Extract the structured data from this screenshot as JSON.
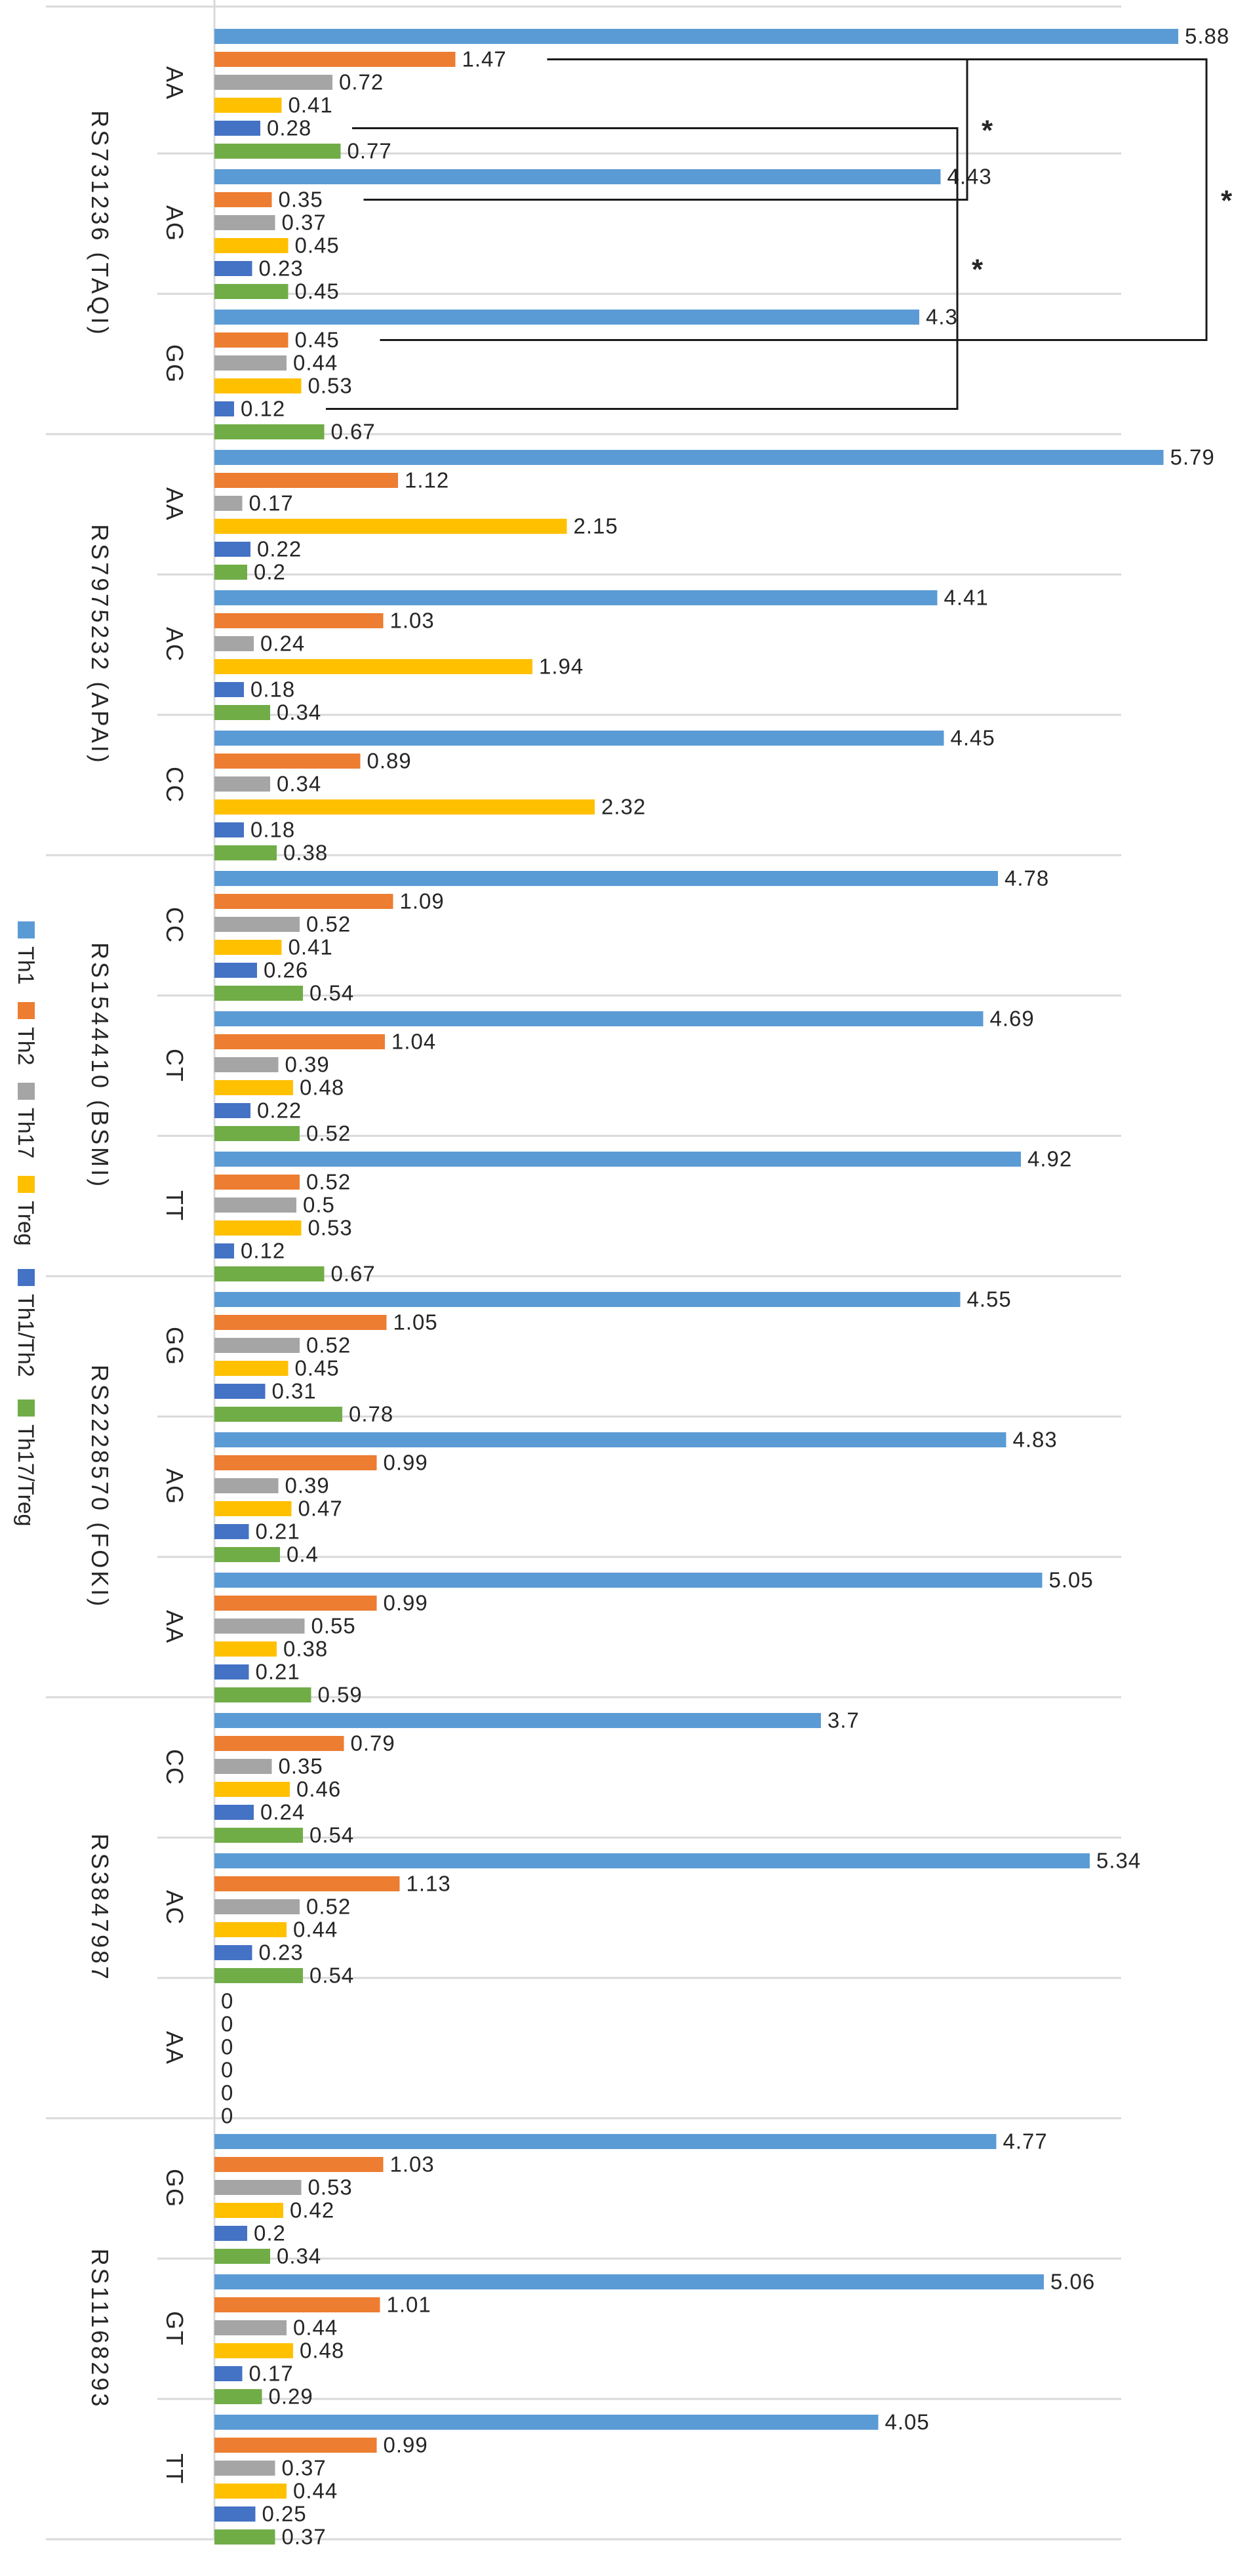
{
  "chart_data": {
    "type": "bar",
    "orientation": "horizontal",
    "title": "",
    "xlabel": "",
    "ylabel": "",
    "xlim": [
      0,
      6.5
    ],
    "grid": false,
    "legend_position": "left",
    "series": [
      {
        "name": "Th1",
        "color": "#5B9BD5"
      },
      {
        "name": "Th2",
        "color": "#ED7D31"
      },
      {
        "name": "Th17",
        "color": "#A5A5A5"
      },
      {
        "name": "Treg",
        "color": "#FFC000"
      },
      {
        "name": "Th1/Th2",
        "color": "#4472C4"
      },
      {
        "name": "Th17/Treg",
        "color": "#70AD47"
      }
    ],
    "groups": [
      {
        "snp": "RS731236 (TAQI)",
        "genotypes": [
          {
            "genotype": "AA",
            "values": [
              5.88,
              1.47,
              0.72,
              0.41,
              0.28,
              0.77
            ],
            "labels": [
              "5.88",
              "1.47",
              "0.72",
              "0.41",
              "0.28",
              "0.77"
            ]
          },
          {
            "genotype": "AG",
            "values": [
              4.43,
              0.35,
              0.37,
              0.45,
              0.23,
              0.45
            ],
            "labels": [
              "4.43",
              "0.35",
              "0.37",
              "0.45",
              "0.23",
              "0.45"
            ]
          },
          {
            "genotype": "GG",
            "values": [
              4.3,
              0.45,
              0.44,
              0.53,
              0.12,
              0.67
            ],
            "labels": [
              "4.3",
              "0.45",
              "0.44",
              "0.53",
              "0.12",
              "0.67"
            ]
          }
        ]
      },
      {
        "snp": "RS7975232 (APAI)",
        "genotypes": [
          {
            "genotype": "AA",
            "values": [
              5.79,
              1.12,
              0.17,
              2.15,
              0.22,
              0.2
            ],
            "labels": [
              "5.79",
              "1.12",
              "0.17",
              "2.15",
              "0.22",
              "0.2"
            ]
          },
          {
            "genotype": "AC",
            "values": [
              4.41,
              1.03,
              0.24,
              1.94,
              0.18,
              0.34
            ],
            "labels": [
              "4.41",
              "1.03",
              "0.24",
              "1.94",
              "0.18",
              "0.34"
            ]
          },
          {
            "genotype": "CC",
            "values": [
              4.45,
              0.89,
              0.34,
              2.32,
              0.18,
              0.38
            ],
            "labels": [
              "4.45",
              "0.89",
              "0.34",
              "2.32",
              "0.18",
              "0.38"
            ]
          }
        ]
      },
      {
        "snp": "RS1544410 (BSMI)",
        "genotypes": [
          {
            "genotype": "CC",
            "values": [
              4.78,
              1.09,
              0.52,
              0.41,
              0.26,
              0.54
            ],
            "labels": [
              "4.78",
              "1.09",
              "0.52",
              "0.41",
              "0.26",
              "0.54"
            ]
          },
          {
            "genotype": "CT",
            "values": [
              4.69,
              1.04,
              0.39,
              0.48,
              0.22,
              0.52
            ],
            "labels": [
              "4.69",
              "1.04",
              "0.39",
              "0.48",
              "0.22",
              "0.52"
            ]
          },
          {
            "genotype": "TT",
            "values": [
              4.92,
              0.52,
              0.5,
              0.53,
              0.12,
              0.67
            ],
            "labels": [
              "4.92",
              "0.52",
              "0.5",
              "0.53",
              "0.12",
              "0.67"
            ]
          }
        ]
      },
      {
        "snp": "RS2228570 (FOKI)",
        "genotypes": [
          {
            "genotype": "GG",
            "values": [
              4.55,
              1.05,
              0.52,
              0.45,
              0.31,
              0.78
            ],
            "labels": [
              "4.55",
              "1.05",
              "0.52",
              "0.45",
              "0.31",
              "0.78"
            ]
          },
          {
            "genotype": "AG",
            "values": [
              4.83,
              0.99,
              0.39,
              0.47,
              0.21,
              0.4
            ],
            "labels": [
              "4.83",
              "0.99",
              "0.39",
              "0.47",
              "0.21",
              "0.4"
            ]
          },
          {
            "genotype": "AA",
            "values": [
              5.05,
              0.99,
              0.55,
              0.38,
              0.21,
              0.59
            ],
            "labels": [
              "5.05",
              "0.99",
              "0.55",
              "0.38",
              "0.21",
              "0.59"
            ]
          }
        ]
      },
      {
        "snp": "RS3847987",
        "genotypes": [
          {
            "genotype": "CC",
            "values": [
              3.7,
              0.79,
              0.35,
              0.46,
              0.24,
              0.54
            ],
            "labels": [
              "3.7",
              "0.79",
              "0.35",
              "0.46",
              "0.24",
              "0.54"
            ]
          },
          {
            "genotype": "AC",
            "values": [
              5.34,
              1.13,
              0.52,
              0.44,
              0.23,
              0.54
            ],
            "labels": [
              "5.34",
              "1.13",
              "0.52",
              "0.44",
              "0.23",
              "0.54"
            ]
          },
          {
            "genotype": "AA",
            "values": [
              0,
              0,
              0,
              0,
              0,
              0
            ],
            "labels": [
              "0",
              "0",
              "0",
              "0",
              "0",
              "0"
            ]
          }
        ]
      },
      {
        "snp": "RS11168293",
        "genotypes": [
          {
            "genotype": "GG",
            "values": [
              4.77,
              1.03,
              0.53,
              0.42,
              0.2,
              0.34
            ],
            "labels": [
              "4.77",
              "1.03",
              "0.53",
              "0.42",
              "0.2",
              "0.34"
            ]
          },
          {
            "genotype": "GT",
            "values": [
              5.06,
              1.01,
              0.44,
              0.48,
              0.17,
              0.29
            ],
            "labels": [
              "5.06",
              "1.01",
              "0.44",
              "0.48",
              "0.17",
              "0.29"
            ]
          },
          {
            "genotype": "TT",
            "values": [
              4.05,
              0.99,
              0.37,
              0.44,
              0.25,
              0.37
            ],
            "labels": [
              "4.05",
              "0.99",
              "0.37",
              "0.44",
              "0.25",
              "0.37"
            ]
          }
        ]
      }
    ],
    "significance": [
      {
        "snp": "RS731236 (TAQI)",
        "from": {
          "genotype": "AA",
          "series": "Th2"
        },
        "to": {
          "genotype": "AG",
          "series": "Th2"
        },
        "mark": "*"
      },
      {
        "snp": "RS731236 (TAQI)",
        "from": {
          "genotype": "AA",
          "series": "Th2"
        },
        "to": {
          "genotype": "GG",
          "series": "Th2"
        },
        "mark": "*"
      },
      {
        "snp": "RS731236 (TAQI)",
        "from": {
          "genotype": "AA",
          "series": "Th1/Th2"
        },
        "to": {
          "genotype": "GG",
          "series": "Th1/Th2"
        },
        "mark": "*"
      }
    ]
  }
}
